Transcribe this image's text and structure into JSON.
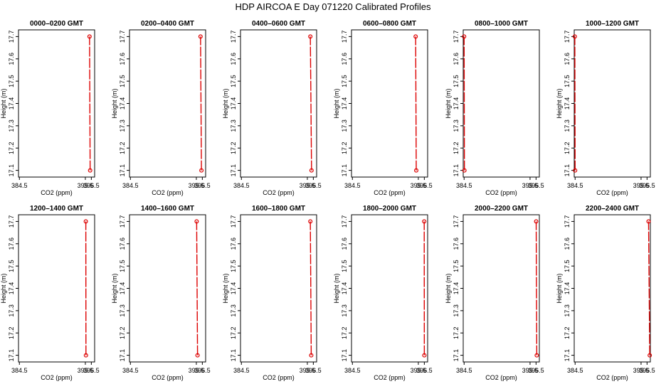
{
  "title": "HDP  AIRCOA E  Day 071220  Calibrated Profiles",
  "colors": {
    "profile": "#dd0000",
    "axis": "#000000"
  },
  "chart_data": [
    {
      "type": "line",
      "title": "0000–0200 GMT",
      "xlabel": "CO2 (ppm)",
      "ylabel": "Height (m)",
      "xlim": [
        384.35,
        397.05
      ],
      "ylim": [
        17.07,
        17.73
      ],
      "xticks": [
        "384.5",
        "395.5",
        "396.5"
      ],
      "xtick_values": [
        384.5,
        395.5,
        396.5
      ],
      "yticks": [
        "17.1",
        "17.2",
        "17.3",
        "17.4",
        "17.5",
        "17.6",
        "17.7"
      ],
      "points": [
        {
          "x": 396.3,
          "y": 17.1
        },
        {
          "x": 396.2,
          "y": 17.7
        }
      ]
    },
    {
      "type": "line",
      "title": "0200–0400 GMT",
      "xlabel": "CO2 (ppm)",
      "ylabel": "Height (m)",
      "xlim": [
        384.35,
        397.05
      ],
      "ylim": [
        17.07,
        17.73
      ],
      "xticks": [
        "384.5",
        "395.5",
        "396.5"
      ],
      "xtick_values": [
        384.5,
        395.5,
        396.5
      ],
      "yticks": [
        "17.1",
        "17.2",
        "17.3",
        "17.4",
        "17.5",
        "17.6",
        "17.7"
      ],
      "points": [
        {
          "x": 396.35,
          "y": 17.1
        },
        {
          "x": 396.2,
          "y": 17.7
        }
      ]
    },
    {
      "type": "line",
      "title": "0400–0600 GMT",
      "xlabel": "CO2 (ppm)",
      "ylabel": "Height (m)",
      "xlim": [
        384.35,
        397.05
      ],
      "ylim": [
        17.07,
        17.73
      ],
      "xticks": [
        "384.5",
        "395.5",
        "396.5"
      ],
      "xtick_values": [
        384.5,
        395.5,
        396.5
      ],
      "yticks": [
        "17.1",
        "17.2",
        "17.3",
        "17.4",
        "17.5",
        "17.6",
        "17.7"
      ],
      "points": [
        {
          "x": 396.2,
          "y": 17.1
        },
        {
          "x": 396.0,
          "y": 17.7
        }
      ]
    },
    {
      "type": "line",
      "title": "0600–0800 GMT",
      "xlabel": "CO2 (ppm)",
      "ylabel": "Height (m)",
      "xlim": [
        384.35,
        397.05
      ],
      "ylim": [
        17.07,
        17.73
      ],
      "xticks": [
        "384.5",
        "395.5",
        "396.5"
      ],
      "xtick_values": [
        384.5,
        395.5,
        396.5
      ],
      "yticks": [
        "17.1",
        "17.2",
        "17.3",
        "17.4",
        "17.5",
        "17.6",
        "17.7"
      ],
      "points": [
        {
          "x": 395.15,
          "y": 17.1
        },
        {
          "x": 395.05,
          "y": 17.7
        }
      ]
    },
    {
      "type": "line",
      "title": "0800–1000 GMT",
      "xlabel": "CO2 (ppm)",
      "ylabel": "Height (m)",
      "xlim": [
        384.35,
        397.05
      ],
      "ylim": [
        17.07,
        17.73
      ],
      "xticks": [
        "384.5",
        "395.5",
        "396.5"
      ],
      "xtick_values": [
        384.5,
        395.5,
        396.5
      ],
      "yticks": [
        "17.1",
        "17.2",
        "17.3",
        "17.4",
        "17.5",
        "17.6",
        "17.7"
      ],
      "points": [
        {
          "x": 384.55,
          "y": 17.1
        },
        {
          "x": 384.5,
          "y": 17.7
        }
      ]
    },
    {
      "type": "line",
      "title": "1000–1200 GMT",
      "xlabel": "CO2 (ppm)",
      "ylabel": "Height (m)",
      "xlim": [
        384.35,
        397.05
      ],
      "ylim": [
        17.07,
        17.73
      ],
      "xticks": [
        "384.5",
        "395.5",
        "396.5"
      ],
      "xtick_values": [
        384.5,
        395.5,
        396.5
      ],
      "yticks": [
        "17.1",
        "17.2",
        "17.3",
        "17.4",
        "17.5",
        "17.6",
        "17.7"
      ],
      "points": [
        {
          "x": 384.5,
          "y": 17.1
        },
        {
          "x": 384.45,
          "y": 17.7
        }
      ]
    },
    {
      "type": "line",
      "title": "1200–1400 GMT",
      "xlabel": "CO2 (ppm)",
      "ylabel": "Height (m)",
      "xlim": [
        384.35,
        397.05
      ],
      "ylim": [
        17.07,
        17.73
      ],
      "xticks": [
        "384.5",
        "395.5",
        "396.5"
      ],
      "xtick_values": [
        384.5,
        395.5,
        396.5
      ],
      "yticks": [
        "17.1",
        "17.2",
        "17.3",
        "17.4",
        "17.5",
        "17.6",
        "17.7"
      ],
      "points": [
        {
          "x": 395.6,
          "y": 17.1
        },
        {
          "x": 395.58,
          "y": 17.7
        }
      ]
    },
    {
      "type": "line",
      "title": "1400–1600 GMT",
      "xlabel": "CO2 (ppm)",
      "ylabel": "Height (m)",
      "xlim": [
        384.35,
        397.05
      ],
      "ylim": [
        17.07,
        17.73
      ],
      "xticks": [
        "384.5",
        "395.5",
        "396.5"
      ],
      "xtick_values": [
        384.5,
        395.5,
        396.5
      ],
      "yticks": [
        "17.1",
        "17.2",
        "17.3",
        "17.4",
        "17.5",
        "17.6",
        "17.7"
      ],
      "points": [
        {
          "x": 395.7,
          "y": 17.1
        },
        {
          "x": 395.55,
          "y": 17.7
        }
      ]
    },
    {
      "type": "line",
      "title": "1600–1800 GMT",
      "xlabel": "CO2 (ppm)",
      "ylabel": "Height (m)",
      "xlim": [
        384.35,
        397.05
      ],
      "ylim": [
        17.07,
        17.73
      ],
      "xticks": [
        "384.5",
        "395.5",
        "396.5"
      ],
      "xtick_values": [
        384.5,
        395.5,
        396.5
      ],
      "yticks": [
        "17.1",
        "17.2",
        "17.3",
        "17.4",
        "17.5",
        "17.6",
        "17.7"
      ],
      "points": [
        {
          "x": 396.15,
          "y": 17.1
        },
        {
          "x": 396.0,
          "y": 17.7
        }
      ]
    },
    {
      "type": "line",
      "title": "1800–2000 GMT",
      "xlabel": "CO2 (ppm)",
      "ylabel": "Height (m)",
      "xlim": [
        384.35,
        397.05
      ],
      "ylim": [
        17.07,
        17.73
      ],
      "xticks": [
        "384.5",
        "395.5",
        "396.5"
      ],
      "xtick_values": [
        384.5,
        395.5,
        396.5
      ],
      "yticks": [
        "17.1",
        "17.2",
        "17.3",
        "17.4",
        "17.5",
        "17.6",
        "17.7"
      ],
      "points": [
        {
          "x": 396.5,
          "y": 17.1
        },
        {
          "x": 396.48,
          "y": 17.7
        }
      ]
    },
    {
      "type": "line",
      "title": "2000–2200 GMT",
      "xlabel": "CO2 (ppm)",
      "ylabel": "Height (m)",
      "xlim": [
        384.35,
        397.05
      ],
      "ylim": [
        17.07,
        17.73
      ],
      "xticks": [
        "384.5",
        "395.5",
        "396.5"
      ],
      "xtick_values": [
        384.5,
        395.5,
        396.5
      ],
      "yticks": [
        "17.1",
        "17.2",
        "17.3",
        "17.4",
        "17.5",
        "17.6",
        "17.7"
      ],
      "points": [
        {
          "x": 396.62,
          "y": 17.1
        },
        {
          "x": 396.52,
          "y": 17.7
        }
      ]
    },
    {
      "type": "line",
      "title": "2200–2400 GMT",
      "xlabel": "CO2 (ppm)",
      "ylabel": "Height (m)",
      "xlim": [
        384.35,
        397.05
      ],
      "ylim": [
        17.07,
        17.73
      ],
      "xticks": [
        "384.5",
        "395.5",
        "396.5"
      ],
      "xtick_values": [
        384.5,
        395.5,
        396.5
      ],
      "yticks": [
        "17.1",
        "17.2",
        "17.3",
        "17.4",
        "17.5",
        "17.6",
        "17.7"
      ],
      "points": [
        {
          "x": 396.95,
          "y": 17.1
        },
        {
          "x": 396.75,
          "y": 17.7
        }
      ]
    }
  ]
}
